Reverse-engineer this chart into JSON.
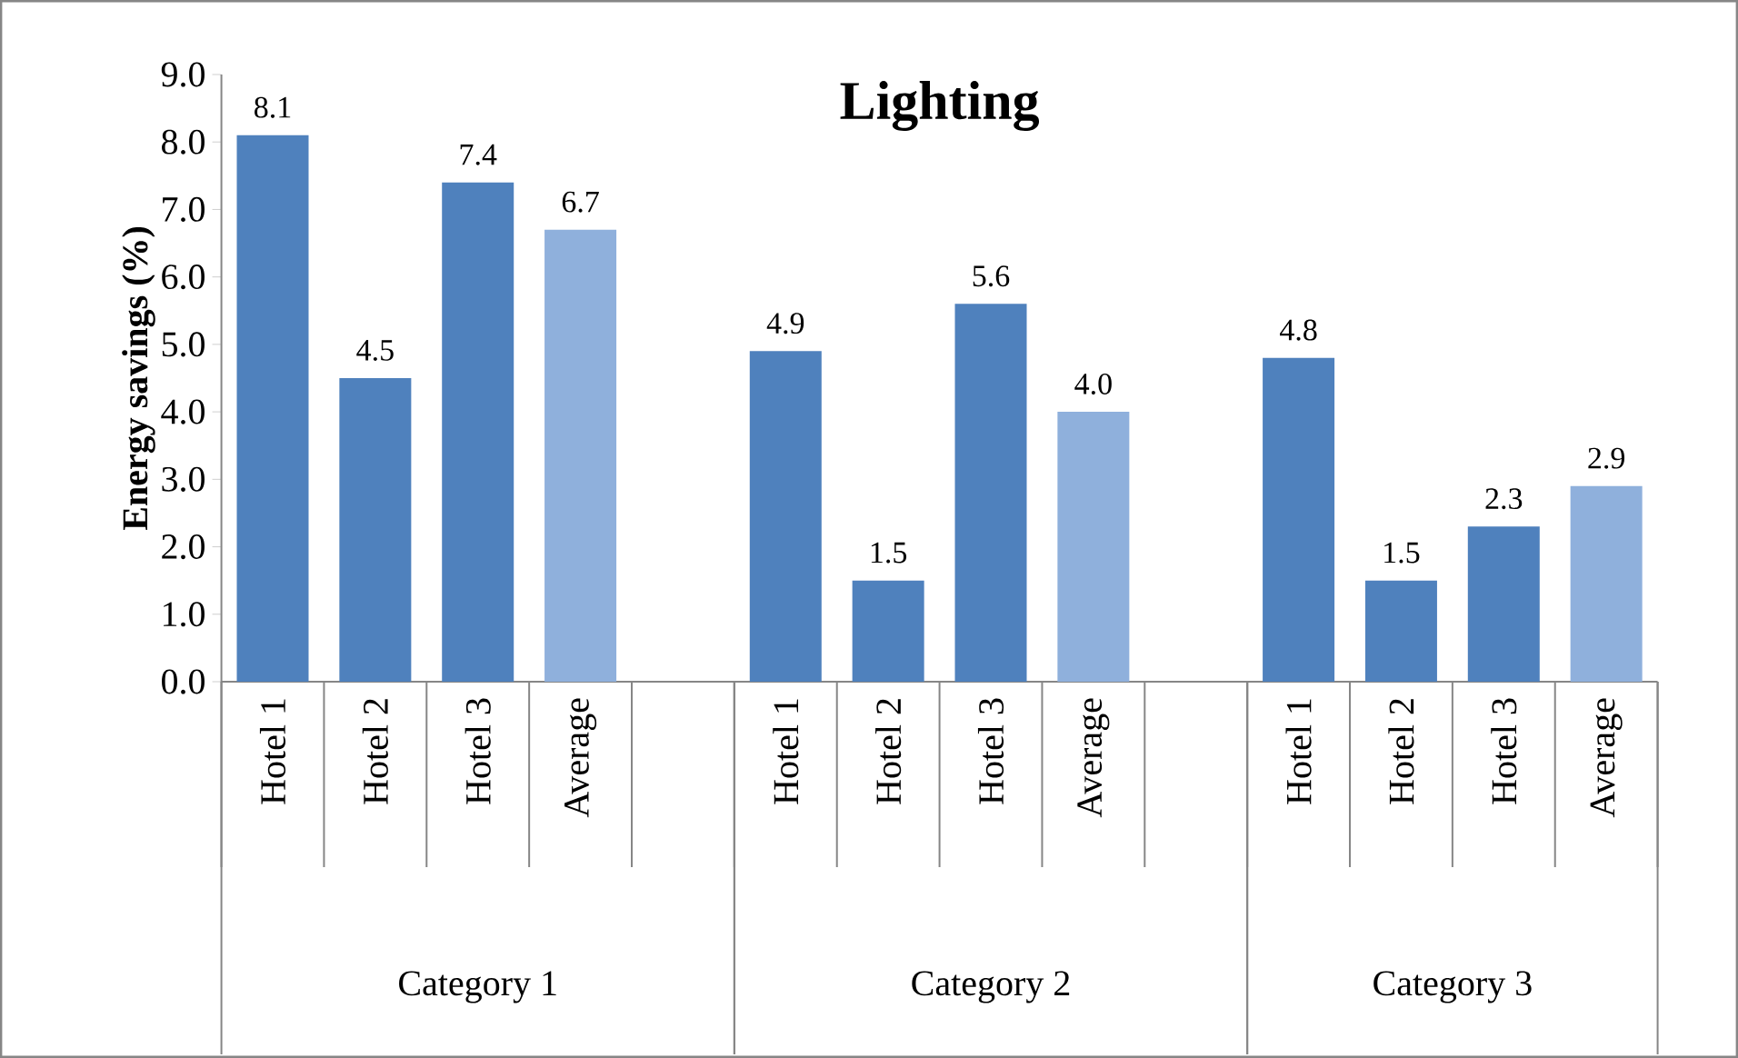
{
  "chart_data": {
    "type": "bar",
    "title": "Lighting",
    "ylabel": "Energy savings (%)",
    "categories": [
      "Hotel 1",
      "Hotel 2",
      "Hotel 3",
      "Average",
      null,
      "Hotel 1",
      "Hotel 2",
      "Hotel 3",
      "Average",
      null,
      "Hotel 1",
      "Hotel 2",
      "Hotel 3",
      "Average"
    ],
    "values": [
      8.1,
      4.5,
      7.4,
      6.7,
      null,
      4.9,
      1.5,
      5.6,
      4.0,
      null,
      4.8,
      1.5,
      2.3,
      2.9
    ],
    "colors": [
      "#4f81bd",
      "#4f81bd",
      "#4f81bd",
      "#8fb0dc",
      null,
      "#4f81bd",
      "#4f81bd",
      "#4f81bd",
      "#8fb0dc",
      null,
      "#4f81bd",
      "#4f81bd",
      "#4f81bd",
      "#8fb0dc"
    ],
    "ylim": [
      0,
      9
    ],
    "yticks": [
      {
        "value": 0,
        "label": "0.0"
      },
      {
        "value": 1,
        "label": "1.0"
      },
      {
        "value": 2,
        "label": "2.0"
      },
      {
        "value": 3,
        "label": "3.0"
      },
      {
        "value": 4,
        "label": "4.0"
      },
      {
        "value": 5,
        "label": "5.0"
      },
      {
        "value": 6,
        "label": "6.0"
      },
      {
        "value": 7,
        "label": "7.0"
      },
      {
        "value": 8,
        "label": "8.0"
      },
      {
        "value": 9,
        "label": "9.0"
      }
    ],
    "value_labels": [
      "8.1",
      "4.5",
      "7.4",
      "6.7",
      null,
      "4.9",
      "1.5",
      "5.6",
      "4.0",
      null,
      "4.8",
      "1.5",
      "2.3",
      "2.9"
    ],
    "annotations": [
      "Category 1",
      "Category 2",
      "Category 3"
    ]
  }
}
